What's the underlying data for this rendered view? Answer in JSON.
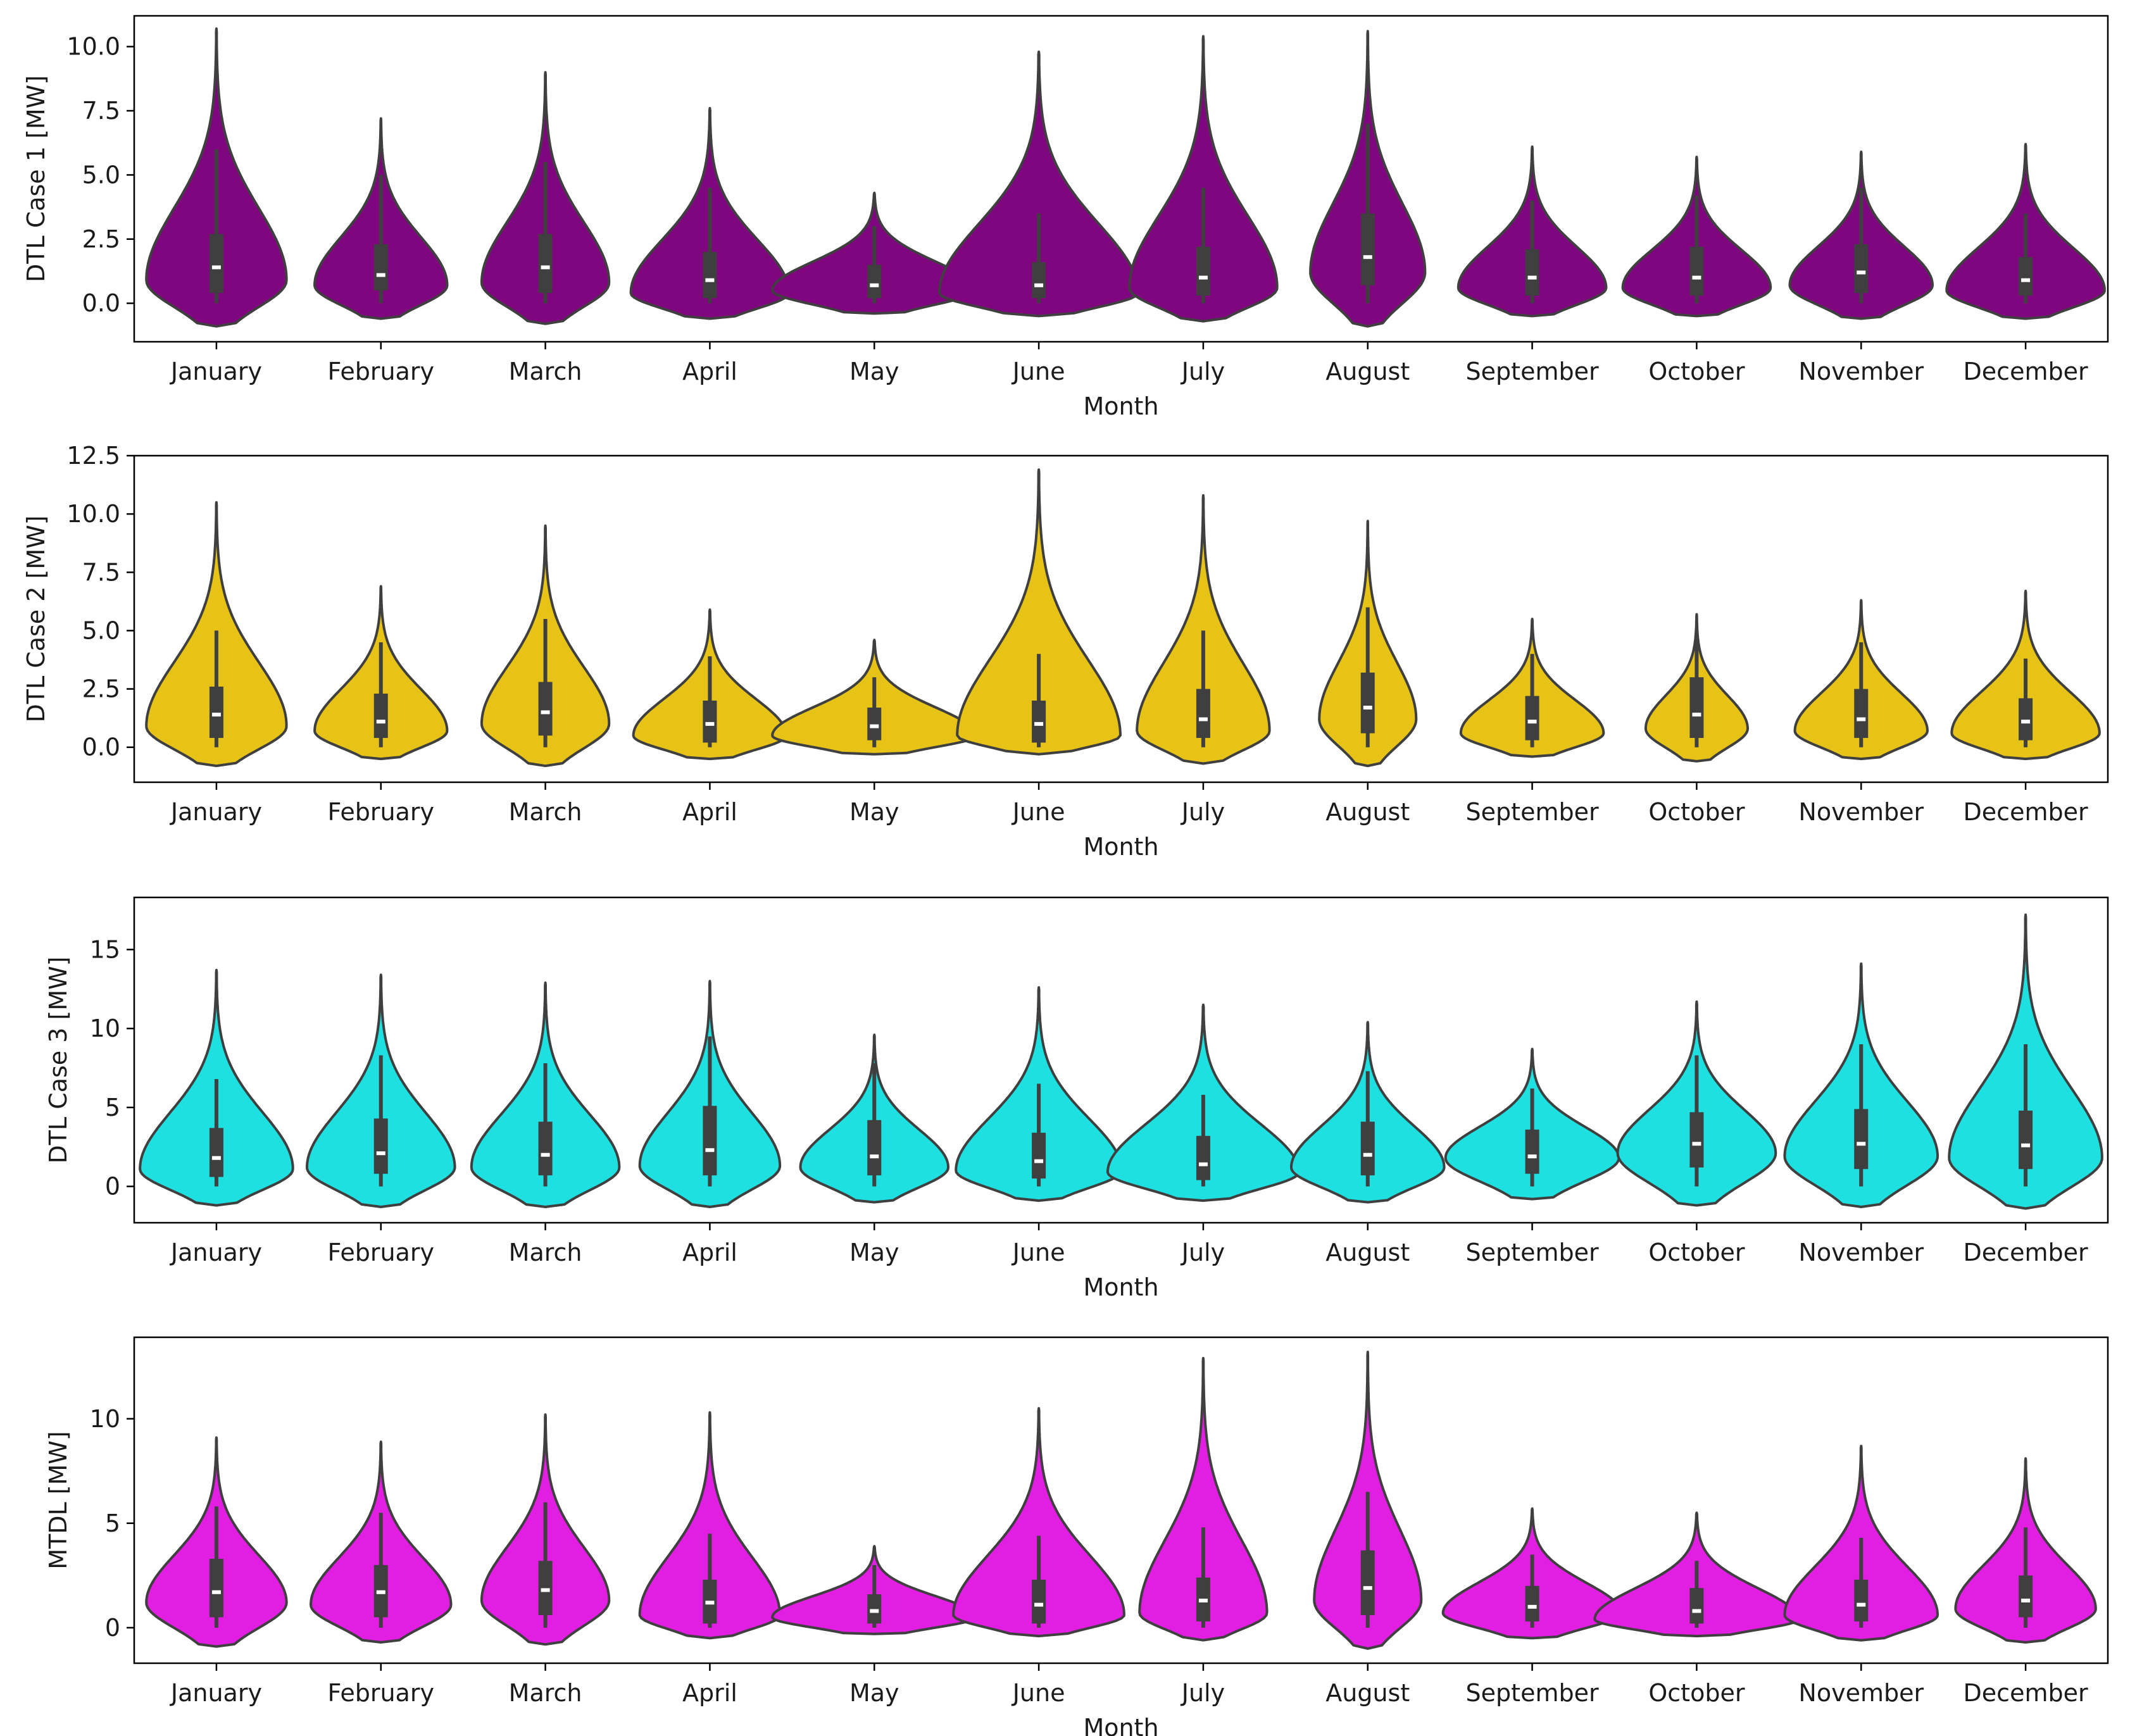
{
  "chart_data": [
    {
      "type": "violin",
      "xlabel": "Month",
      "ylabel": "DTL Case 1 [MW]",
      "ylim": [
        -1.5,
        11.2
      ],
      "yticks": [
        0,
        2.5,
        5,
        7.5,
        10
      ],
      "ytick_labels": [
        "0.0",
        "2.5",
        "5.0",
        "7.5",
        "10.0"
      ],
      "color": "#800680",
      "categories": [
        "January",
        "February",
        "March",
        "April",
        "May",
        "June",
        "July",
        "August",
        "September",
        "October",
        "November",
        "December"
      ],
      "violins": [
        {
          "min": -0.9,
          "max": 10.7,
          "q1": 0.4,
          "median": 1.4,
          "q3": 2.7,
          "whisker_low": 0.0,
          "whisker_high": 6.0,
          "mode": 0.9,
          "halfwidth": 0.55
        },
        {
          "min": -0.6,
          "max": 7.2,
          "q1": 0.5,
          "median": 1.1,
          "q3": 2.3,
          "whisker_low": 0.0,
          "whisker_high": 5.0,
          "mode": 0.7,
          "halfwidth": 0.52
        },
        {
          "min": -0.8,
          "max": 9.0,
          "q1": 0.4,
          "median": 1.4,
          "q3": 2.7,
          "whisker_low": 0.0,
          "whisker_high": 5.5,
          "mode": 0.8,
          "halfwidth": 0.5
        },
        {
          "min": -0.6,
          "max": 7.6,
          "q1": 0.2,
          "median": 0.9,
          "q3": 2.0,
          "whisker_low": 0.0,
          "whisker_high": 4.5,
          "mode": 0.4,
          "halfwidth": 0.62
        },
        {
          "min": -0.4,
          "max": 4.3,
          "q1": 0.2,
          "median": 0.7,
          "q3": 1.5,
          "whisker_low": 0.0,
          "whisker_high": 3.0,
          "mode": 0.5,
          "halfwidth": 0.8
        },
        {
          "min": -0.5,
          "max": 9.8,
          "q1": 0.2,
          "median": 0.7,
          "q3": 1.6,
          "whisker_low": 0.0,
          "whisker_high": 3.5,
          "mode": 0.4,
          "halfwidth": 0.78
        },
        {
          "min": -0.7,
          "max": 10.4,
          "q1": 0.3,
          "median": 1.0,
          "q3": 2.2,
          "whisker_low": 0.0,
          "whisker_high": 4.5,
          "mode": 0.6,
          "halfwidth": 0.58
        },
        {
          "min": -0.9,
          "max": 10.6,
          "q1": 0.7,
          "median": 1.8,
          "q3": 3.5,
          "whisker_low": 0.0,
          "whisker_high": 7.0,
          "mode": 1.2,
          "halfwidth": 0.45
        },
        {
          "min": -0.5,
          "max": 6.1,
          "q1": 0.3,
          "median": 1.0,
          "q3": 2.1,
          "whisker_low": 0.0,
          "whisker_high": 4.0,
          "mode": 0.6,
          "halfwidth": 0.58
        },
        {
          "min": -0.5,
          "max": 5.7,
          "q1": 0.3,
          "median": 1.0,
          "q3": 2.2,
          "whisker_low": 0.0,
          "whisker_high": 4.2,
          "mode": 0.6,
          "halfwidth": 0.58
        },
        {
          "min": -0.6,
          "max": 5.9,
          "q1": 0.4,
          "median": 1.2,
          "q3": 2.3,
          "whisker_low": 0.0,
          "whisker_high": 4.5,
          "mode": 0.7,
          "halfwidth": 0.56
        },
        {
          "min": -0.6,
          "max": 6.2,
          "q1": 0.3,
          "median": 0.9,
          "q3": 1.8,
          "whisker_low": 0.0,
          "whisker_high": 3.5,
          "mode": 0.5,
          "halfwidth": 0.62
        }
      ]
    },
    {
      "type": "violin",
      "xlabel": "Month",
      "ylabel": "DTL Case 2 [MW]",
      "ylim": [
        -1.5,
        12.5
      ],
      "yticks": [
        0,
        2.5,
        5,
        7.5,
        10,
        12.5
      ],
      "ytick_labels": [
        "0.0",
        "2.5",
        "5.0",
        "7.5",
        "10.0",
        "12.5"
      ],
      "color": "#e6c316",
      "categories": [
        "January",
        "February",
        "March",
        "April",
        "May",
        "June",
        "July",
        "August",
        "September",
        "October",
        "November",
        "December"
      ],
      "violins": [
        {
          "min": -0.8,
          "max": 10.5,
          "q1": 0.4,
          "median": 1.4,
          "q3": 2.6,
          "whisker_low": 0.0,
          "whisker_high": 5.0,
          "mode": 0.9,
          "halfwidth": 0.55
        },
        {
          "min": -0.5,
          "max": 6.9,
          "q1": 0.4,
          "median": 1.1,
          "q3": 2.3,
          "whisker_low": 0.0,
          "whisker_high": 4.5,
          "mode": 0.7,
          "halfwidth": 0.52
        },
        {
          "min": -0.8,
          "max": 9.5,
          "q1": 0.5,
          "median": 1.5,
          "q3": 2.8,
          "whisker_low": 0.0,
          "whisker_high": 5.5,
          "mode": 1.0,
          "halfwidth": 0.5
        },
        {
          "min": -0.5,
          "max": 5.9,
          "q1": 0.2,
          "median": 1.0,
          "q3": 2.0,
          "whisker_low": 0.0,
          "whisker_high": 3.9,
          "mode": 0.5,
          "halfwidth": 0.6
        },
        {
          "min": -0.3,
          "max": 4.6,
          "q1": 0.3,
          "median": 0.9,
          "q3": 1.7,
          "whisker_low": 0.0,
          "whisker_high": 3.0,
          "mode": 0.5,
          "halfwidth": 0.8
        },
        {
          "min": -0.3,
          "max": 11.9,
          "q1": 0.2,
          "median": 1.0,
          "q3": 2.0,
          "whisker_low": 0.0,
          "whisker_high": 4.0,
          "mode": 0.5,
          "halfwidth": 0.64
        },
        {
          "min": -0.7,
          "max": 10.8,
          "q1": 0.4,
          "median": 1.2,
          "q3": 2.5,
          "whisker_low": 0.0,
          "whisker_high": 5.0,
          "mode": 0.7,
          "halfwidth": 0.52
        },
        {
          "min": -0.8,
          "max": 9.7,
          "q1": 0.6,
          "median": 1.7,
          "q3": 3.2,
          "whisker_low": 0.0,
          "whisker_high": 6.0,
          "mode": 1.2,
          "halfwidth": 0.38
        },
        {
          "min": -0.4,
          "max": 5.5,
          "q1": 0.3,
          "median": 1.1,
          "q3": 2.2,
          "whisker_low": 0.0,
          "whisker_high": 4.0,
          "mode": 0.6,
          "halfwidth": 0.56
        },
        {
          "min": -0.6,
          "max": 5.7,
          "q1": 0.4,
          "median": 1.4,
          "q3": 3.0,
          "whisker_low": 0.0,
          "whisker_high": 4.8,
          "mode": 0.8,
          "halfwidth": 0.4
        },
        {
          "min": -0.5,
          "max": 6.3,
          "q1": 0.4,
          "median": 1.2,
          "q3": 2.5,
          "whisker_low": 0.0,
          "whisker_high": 4.5,
          "mode": 0.7,
          "halfwidth": 0.52
        },
        {
          "min": -0.5,
          "max": 6.7,
          "q1": 0.3,
          "median": 1.1,
          "q3": 2.1,
          "whisker_low": 0.0,
          "whisker_high": 3.8,
          "mode": 0.6,
          "halfwidth": 0.58
        }
      ]
    },
    {
      "type": "violin",
      "xlabel": "Month",
      "ylabel": "DTL Case 3 [MW]",
      "ylim": [
        -2.3,
        18.3
      ],
      "yticks": [
        0,
        5,
        10,
        15
      ],
      "ytick_labels": [
        "0",
        "5",
        "10",
        "15"
      ],
      "color": "#1ee0e0",
      "categories": [
        "January",
        "February",
        "March",
        "April",
        "May",
        "June",
        "July",
        "August",
        "September",
        "October",
        "November",
        "December"
      ],
      "violins": [
        {
          "min": -1.2,
          "max": 13.7,
          "q1": 0.6,
          "median": 1.8,
          "q3": 3.7,
          "whisker_low": 0.0,
          "whisker_high": 6.8,
          "mode": 1.1,
          "halfwidth": 0.6
        },
        {
          "min": -1.3,
          "max": 13.4,
          "q1": 0.8,
          "median": 2.1,
          "q3": 4.3,
          "whisker_low": 0.0,
          "whisker_high": 8.3,
          "mode": 1.2,
          "halfwidth": 0.58
        },
        {
          "min": -1.3,
          "max": 12.9,
          "q1": 0.7,
          "median": 2.0,
          "q3": 4.1,
          "whisker_low": 0.0,
          "whisker_high": 7.8,
          "mode": 1.2,
          "halfwidth": 0.58
        },
        {
          "min": -1.3,
          "max": 13.0,
          "q1": 0.7,
          "median": 2.3,
          "q3": 5.1,
          "whisker_low": 0.0,
          "whisker_high": 9.5,
          "mode": 1.3,
          "halfwidth": 0.55
        },
        {
          "min": -1.0,
          "max": 9.6,
          "q1": 0.7,
          "median": 1.9,
          "q3": 4.2,
          "whisker_low": 0.0,
          "whisker_high": 7.8,
          "mode": 1.2,
          "halfwidth": 0.58
        },
        {
          "min": -0.9,
          "max": 12.6,
          "q1": 0.5,
          "median": 1.6,
          "q3": 3.4,
          "whisker_low": 0.0,
          "whisker_high": 6.5,
          "mode": 1.0,
          "halfwidth": 0.65
        },
        {
          "min": -0.9,
          "max": 11.5,
          "q1": 0.4,
          "median": 1.4,
          "q3": 3.2,
          "whisker_low": 0.0,
          "whisker_high": 5.8,
          "mode": 0.9,
          "halfwidth": 0.75
        },
        {
          "min": -1.0,
          "max": 10.4,
          "q1": 0.7,
          "median": 2.0,
          "q3": 4.1,
          "whisker_low": 0.0,
          "whisker_high": 7.3,
          "mode": 1.2,
          "halfwidth": 0.6
        },
        {
          "min": -0.8,
          "max": 8.7,
          "q1": 0.8,
          "median": 1.9,
          "q3": 3.6,
          "whisker_low": 0.0,
          "whisker_high": 6.2,
          "mode": 1.8,
          "halfwidth": 0.68
        },
        {
          "min": -1.2,
          "max": 11.7,
          "q1": 1.2,
          "median": 2.7,
          "q3": 4.7,
          "whisker_low": 0.0,
          "whisker_high": 8.3,
          "mode": 2.1,
          "halfwidth": 0.62
        },
        {
          "min": -1.3,
          "max": 14.1,
          "q1": 1.1,
          "median": 2.7,
          "q3": 4.9,
          "whisker_low": 0.0,
          "whisker_high": 9.0,
          "mode": 1.9,
          "halfwidth": 0.6
        },
        {
          "min": -1.4,
          "max": 17.2,
          "q1": 1.1,
          "median": 2.6,
          "q3": 4.8,
          "whisker_low": 0.0,
          "whisker_high": 9.0,
          "mode": 1.8,
          "halfwidth": 0.6
        }
      ]
    },
    {
      "type": "violin",
      "xlabel": "Month",
      "ylabel": "MTDL [MW]",
      "ylim": [
        -1.7,
        13.9
      ],
      "yticks": [
        0,
        5,
        10
      ],
      "ytick_labels": [
        "0",
        "5",
        "10"
      ],
      "color": "#e31ee3",
      "categories": [
        "January",
        "February",
        "March",
        "April",
        "May",
        "June",
        "July",
        "August",
        "September",
        "October",
        "November",
        "December"
      ],
      "violins": [
        {
          "min": -0.9,
          "max": 9.1,
          "q1": 0.5,
          "median": 1.7,
          "q3": 3.3,
          "whisker_low": 0.0,
          "whisker_high": 5.8,
          "mode": 1.2,
          "halfwidth": 0.55
        },
        {
          "min": -0.7,
          "max": 8.9,
          "q1": 0.5,
          "median": 1.7,
          "q3": 3.0,
          "whisker_low": 0.0,
          "whisker_high": 5.5,
          "mode": 1.1,
          "halfwidth": 0.55
        },
        {
          "min": -0.8,
          "max": 10.2,
          "q1": 0.6,
          "median": 1.8,
          "q3": 3.2,
          "whisker_low": 0.0,
          "whisker_high": 6.0,
          "mode": 1.3,
          "halfwidth": 0.5
        },
        {
          "min": -0.5,
          "max": 10.3,
          "q1": 0.2,
          "median": 1.2,
          "q3": 2.3,
          "whisker_low": 0.0,
          "whisker_high": 4.5,
          "mode": 0.6,
          "halfwidth": 0.55
        },
        {
          "min": -0.3,
          "max": 3.9,
          "q1": 0.2,
          "median": 0.8,
          "q3": 1.6,
          "whisker_low": 0.0,
          "whisker_high": 3.0,
          "mode": 0.5,
          "halfwidth": 0.8
        },
        {
          "min": -0.4,
          "max": 10.5,
          "q1": 0.2,
          "median": 1.1,
          "q3": 2.3,
          "whisker_low": 0.0,
          "whisker_high": 4.4,
          "mode": 0.6,
          "halfwidth": 0.67
        },
        {
          "min": -0.6,
          "max": 12.9,
          "q1": 0.3,
          "median": 1.3,
          "q3": 2.4,
          "whisker_low": 0.0,
          "whisker_high": 4.8,
          "mode": 0.7,
          "halfwidth": 0.5
        },
        {
          "min": -1.0,
          "max": 13.2,
          "q1": 0.6,
          "median": 1.9,
          "q3": 3.7,
          "whisker_low": 0.0,
          "whisker_high": 6.5,
          "mode": 1.3,
          "halfwidth": 0.42
        },
        {
          "min": -0.5,
          "max": 5.7,
          "q1": 0.3,
          "median": 1.0,
          "q3": 2.0,
          "whisker_low": 0.0,
          "whisker_high": 3.5,
          "mode": 0.7,
          "halfwidth": 0.7
        },
        {
          "min": -0.4,
          "max": 5.5,
          "q1": 0.2,
          "median": 0.8,
          "q3": 1.9,
          "whisker_low": 0.0,
          "whisker_high": 3.2,
          "mode": 0.4,
          "halfwidth": 0.8
        },
        {
          "min": -0.6,
          "max": 8.7,
          "q1": 0.3,
          "median": 1.1,
          "q3": 2.3,
          "whisker_low": 0.0,
          "whisker_high": 4.3,
          "mode": 0.6,
          "halfwidth": 0.6
        },
        {
          "min": -0.7,
          "max": 8.1,
          "q1": 0.5,
          "median": 1.3,
          "q3": 2.5,
          "whisker_low": 0.0,
          "whisker_high": 4.8,
          "mode": 0.9,
          "halfwidth": 0.55
        }
      ]
    }
  ]
}
